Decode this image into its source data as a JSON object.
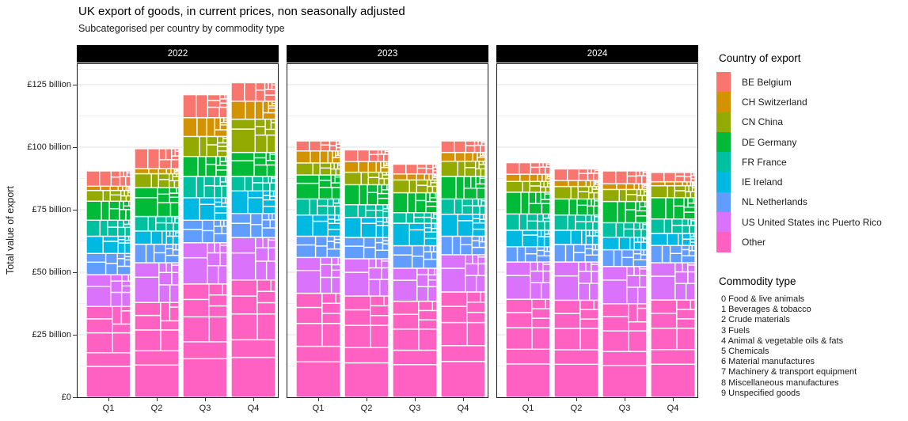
{
  "chart_data": {
    "type": "bar",
    "variant": "faceted stacked bar, each country segment subdivided into commodity-type mosaic cells",
    "title": "UK export of goods, in current prices, non seasonally adjusted",
    "subtitle": "Subcategorised per country by commodity type",
    "ylabel": "Total value of export",
    "unit": "billion GBP",
    "ylim": [
      0,
      133.5
    ],
    "grid": true,
    "y_major_ticks": [
      {
        "value": 0,
        "label": "£0"
      },
      {
        "value": 25,
        "label": "£25 billion"
      },
      {
        "value": 50,
        "label": "£50 billion"
      },
      {
        "value": 75,
        "label": "£75 billion"
      },
      {
        "value": 100,
        "label": "£100 billion"
      },
      {
        "value": 125,
        "label": "£125 billion"
      }
    ],
    "y_minor_ticks": [
      12.5,
      37.5,
      62.5,
      87.5,
      112.5,
      131.25
    ],
    "facets": [
      "2022",
      "2023",
      "2024"
    ],
    "categories": [
      "Q1",
      "Q2",
      "Q3",
      "Q4"
    ],
    "legend_title": "Country of export",
    "legend_position": "right",
    "countries": [
      {
        "code": "BE",
        "label": "BE Belgium",
        "color": "#F8766D",
        "commodity_shares": [
          7,
          2,
          3,
          8,
          1,
          30,
          12,
          26,
          8,
          3
        ]
      },
      {
        "code": "CH",
        "label": "CH Switzerland",
        "color": "#D39200",
        "commodity_shares": [
          4,
          2,
          2,
          1,
          1,
          22,
          8,
          18,
          10,
          32
        ]
      },
      {
        "code": "CN",
        "label": "CN China",
        "color": "#93AA00",
        "commodity_shares": [
          5,
          4,
          6,
          2,
          1,
          14,
          16,
          38,
          10,
          4
        ]
      },
      {
        "code": "DE",
        "label": "DE Germany",
        "color": "#00BA38",
        "commodity_shares": [
          8,
          3,
          4,
          6,
          1,
          18,
          14,
          34,
          9,
          3
        ]
      },
      {
        "code": "FR",
        "label": "FR France",
        "color": "#00C19F",
        "commodity_shares": [
          10,
          6,
          3,
          7,
          1,
          17,
          13,
          31,
          9,
          3
        ]
      },
      {
        "code": "IE",
        "label": "IE Ireland",
        "color": "#00B9E3",
        "commodity_shares": [
          9,
          3,
          2,
          3,
          1,
          38,
          10,
          24,
          8,
          2
        ]
      },
      {
        "code": "NL",
        "label": "NL Netherlands",
        "color": "#619CFF",
        "commodity_shares": [
          12,
          4,
          4,
          14,
          2,
          18,
          12,
          26,
          6,
          2
        ]
      },
      {
        "code": "US",
        "label": "US United States inc Puerto Rico",
        "color": "#DB72FB",
        "commodity_shares": [
          5,
          4,
          3,
          9,
          1,
          20,
          11,
          35,
          9,
          3
        ]
      },
      {
        "code": "OTHER",
        "label": "Other",
        "color": "#FF61C3",
        "commodity_shares": [
          9,
          4,
          4,
          8,
          1,
          15,
          13,
          34,
          9,
          3
        ]
      }
    ],
    "stack_order_bottom_to_top": [
      "OTHER",
      "US",
      "NL",
      "IE",
      "FR",
      "DE",
      "CN",
      "CH",
      "BE"
    ],
    "values_billion": {
      "2022": {
        "Q1": {
          "BE": 6.1,
          "CH": 1.7,
          "CN": 4.3,
          "DE": 7.6,
          "FR": 6.4,
          "IE": 6.9,
          "NL": 8.5,
          "US": 12.7,
          "OTHER": 36.3
        },
        "Q2": {
          "BE": 8.0,
          "CH": 2.0,
          "CN": 5.6,
          "DE": 11.5,
          "FR": 5.8,
          "IE": 5.3,
          "NL": 7.4,
          "US": 15.9,
          "OTHER": 37.9
        },
        "Q3": {
          "BE": 9.2,
          "CH": 7.5,
          "CN": 8.0,
          "DE": 8.0,
          "FR": 8.5,
          "IE": 9.0,
          "NL": 9.0,
          "US": 16.5,
          "OTHER": 45.3
        },
        "Q4": {
          "BE": 7.4,
          "CH": 7.2,
          "CN": 13.3,
          "DE": 9.6,
          "FR": 5.8,
          "IE": 9.0,
          "NL": 9.6,
          "US": 17.0,
          "OTHER": 46.9
        }
      },
      "2023": {
        "Q1": {
          "BE": 4.0,
          "CH": 4.8,
          "CN": 4.8,
          "DE": 9.6,
          "FR": 6.4,
          "IE": 8.5,
          "NL": 8.5,
          "US": 14.3,
          "OTHER": 41.6
        },
        "Q2": {
          "BE": 4.6,
          "CH": 4.3,
          "CN": 5.0,
          "DE": 8.0,
          "FR": 5.1,
          "IE": 8.0,
          "NL": 8.5,
          "US": 14.9,
          "OTHER": 40.5
        },
        "Q3": {
          "BE": 3.9,
          "CH": 2.4,
          "CN": 5.1,
          "DE": 8.0,
          "FR": 4.2,
          "IE": 9.0,
          "NL": 9.0,
          "US": 13.2,
          "OTHER": 38.4
        },
        "Q4": {
          "BE": 4.6,
          "CH": 3.5,
          "CN": 6.1,
          "DE": 9.0,
          "FR": 6.1,
          "IE": 8.8,
          "NL": 7.4,
          "US": 14.9,
          "OTHER": 42.1
        }
      },
      "2024": {
        "Q1": {
          "BE": 4.6,
          "CH": 2.9,
          "CN": 4.3,
          "DE": 8.7,
          "FR": 6.5,
          "IE": 6.6,
          "NL": 6.1,
          "US": 14.9,
          "OTHER": 39.2
        },
        "Q2": {
          "BE": 4.6,
          "CH": 2.4,
          "CN": 5.0,
          "DE": 6.4,
          "FR": 6.1,
          "IE": 5.7,
          "NL": 7.0,
          "US": 15.3,
          "OTHER": 38.8
        },
        "Q3": {
          "BE": 5.1,
          "CH": 2.3,
          "CN": 4.8,
          "DE": 8.5,
          "FR": 5.8,
          "IE": 5.0,
          "NL": 6.7,
          "US": 14.9,
          "OTHER": 37.4
        },
        "Q4": {
          "BE": 3.7,
          "CH": 1.6,
          "CN": 4.8,
          "DE": 8.5,
          "FR": 5.8,
          "IE": 4.8,
          "NL": 6.9,
          "US": 14.9,
          "OTHER": 38.9
        }
      }
    },
    "totals_billion": {
      "2022": [
        90.5,
        99.4,
        121.0,
        125.8
      ],
      "2023": [
        102.5,
        98.9,
        93.2,
        102.5
      ],
      "2024": [
        93.8,
        91.3,
        90.5,
        89.9
      ]
    },
    "commodity_legend_title": "Commodity type",
    "commodity_types": [
      "0 Food & live animals",
      "1 Beverages & tobacco",
      "2 Crude materials",
      "3 Fuels",
      "4 Animal & vegetable oils & fats",
      "5 Chemicals",
      "6 Material manufactures",
      "7 Machinery & transport equipment",
      "8 Miscellaneous manufactures",
      "9 Unspecified goods"
    ],
    "facet_strip_bg": "#000000",
    "facet_strip_text_color": "#ffffff"
  }
}
